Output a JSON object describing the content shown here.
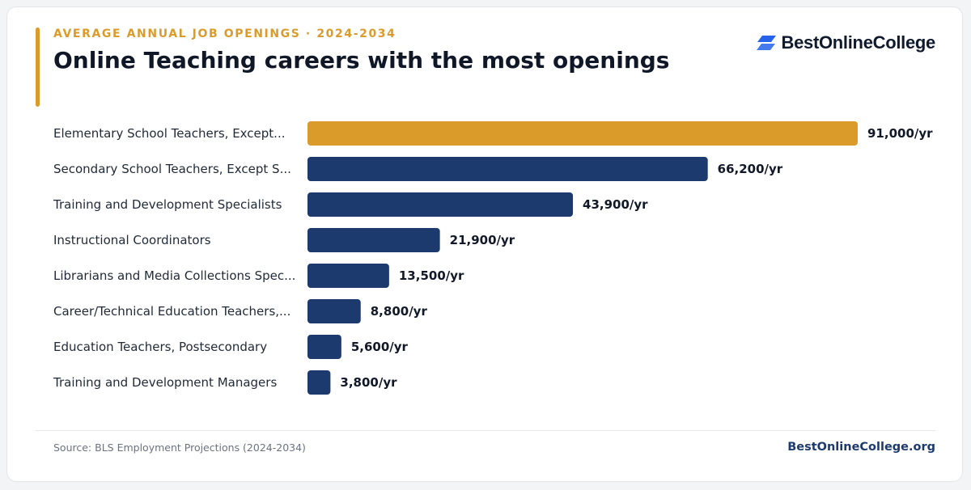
{
  "header": {
    "eyebrow": "AVERAGE ANNUAL JOB OPENINGS · 2024-2034",
    "title": "Online Teaching careers with the most openings"
  },
  "brand": {
    "name": "BestOnlineCollege",
    "logo_icon": "stacked-parallelograms-icon"
  },
  "footer": {
    "source": "Source: BLS Employment Projections (2024-2034)",
    "site": "BestOnlineCollege.org"
  },
  "colors": {
    "accent": "#DB9B2A",
    "bar_primary": "#1C3A6E",
    "logo": "#2563EB",
    "title": "#101828"
  },
  "chart_data": {
    "type": "bar",
    "orientation": "horizontal",
    "title": "Online Teaching careers with the most openings",
    "subtitle": "AVERAGE ANNUAL JOB OPENINGS · 2024-2034",
    "unit_suffix": "/yr",
    "categories": [
      "Elementary School Teachers, Except...",
      "Secondary School Teachers, Except S...",
      "Training and Development Specialists",
      "Instructional Coordinators",
      "Librarians and Media Collections Spec...",
      "Career/Technical Education Teachers,...",
      "Education Teachers, Postsecondary",
      "Training and Development Managers"
    ],
    "values": [
      91000,
      66200,
      43900,
      21900,
      13500,
      8800,
      5600,
      3800
    ],
    "value_labels": [
      "91,000/yr",
      "66,200/yr",
      "43,900/yr",
      "21,900/yr",
      "13,500/yr",
      "8,800/yr",
      "5,600/yr",
      "3,800/yr"
    ],
    "highlight_index": 0,
    "xlim": [
      0,
      91000
    ],
    "grid": false,
    "legend": "none"
  }
}
